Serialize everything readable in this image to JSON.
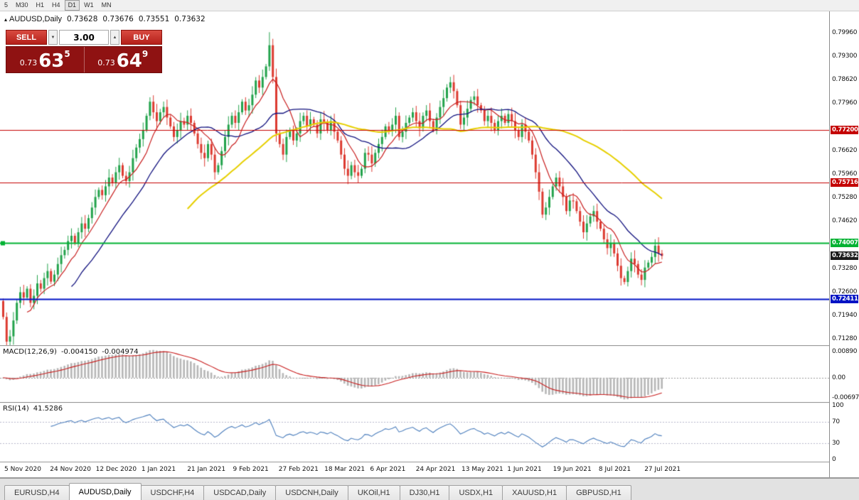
{
  "toolbar": {
    "timeframes": [
      "5",
      "M30",
      "H1",
      "H4",
      "D1",
      "W1",
      "MN"
    ],
    "active_timeframe": "D1"
  },
  "chart": {
    "header": {
      "marker": "▴",
      "title": "AUDUSD,Daily",
      "open": "0.73628",
      "high": "0.73676",
      "low": "0.73551",
      "close": "0.73632"
    },
    "trade_panel": {
      "sell_label": "SELL",
      "buy_label": "BUY",
      "volume_value": "3.00",
      "volume_down_arrow": "▼",
      "volume_up_arrow": "▲",
      "sell_price": {
        "base": "0.73",
        "big": "63",
        "sup": "5"
      },
      "buy_price": {
        "base": "0.73",
        "big": "64",
        "sup": "9"
      }
    },
    "hlines": [
      {
        "price": 0.772,
        "color": "#c40000",
        "width": 1
      },
      {
        "price": 0.75716,
        "color": "#c40000",
        "width": 1
      },
      {
        "price": 0.74007,
        "color": "#00b232",
        "width": 2,
        "handle": true
      },
      {
        "price": 0.72411,
        "color": "#0013c4",
        "width": 2
      }
    ],
    "price_axis_labels": [
      {
        "text": "0.79960",
        "price": 0.7996
      },
      {
        "text": "0.79300",
        "price": 0.793
      },
      {
        "text": "0.78620",
        "price": 0.7862
      },
      {
        "text": "0.77960",
        "price": 0.7796
      },
      {
        "text": "0.76620",
        "price": 0.7662
      },
      {
        "text": "0.75960",
        "price": 0.7596
      },
      {
        "text": "0.75280",
        "price": 0.7528
      },
      {
        "text": "0.74620",
        "price": 0.7462
      },
      {
        "text": "0.73280",
        "price": 0.7328
      },
      {
        "text": "0.72600",
        "price": 0.726
      },
      {
        "text": "0.71940",
        "price": 0.7194
      },
      {
        "text": "0.71280",
        "price": 0.7128
      }
    ],
    "price_axis_tags": [
      {
        "text": "0.77200",
        "price": 0.772,
        "color": "#c40000"
      },
      {
        "text": "0.75716",
        "price": 0.75716,
        "color": "#c40000"
      },
      {
        "text": "0.74007",
        "price": 0.74007,
        "color": "#00b232"
      },
      {
        "text": "0.73632",
        "price": 0.73632,
        "color": "#1c1c1c"
      },
      {
        "text": "0.72411",
        "price": 0.72411,
        "color": "#0013c4"
      }
    ]
  },
  "chart_data": {
    "type": "candlestick",
    "title": "AUDUSD,Daily",
    "symbol": "AUDUSD",
    "timeframe": "Daily",
    "ohlc_current": {
      "open": 0.73628,
      "high": 0.73676,
      "low": 0.73551,
      "close": 0.73632
    },
    "y_range": {
      "top": 0.8056,
      "bottom": 0.711
    },
    "up_color": "#22a24b",
    "down_color": "#dc3a30",
    "moving_averages": [
      {
        "period": 8,
        "color": "#c81e1e",
        "width": 1.2
      },
      {
        "period": 21,
        "color": "#11117e",
        "width": 1.3
      },
      {
        "period": 55,
        "color": "#e6cf00",
        "width": 2
      }
    ],
    "x_labels": [
      "5 Nov 2020",
      "24 Nov 2020",
      "12 Dec 2020",
      "1 Jan 2021",
      "21 Jan 2021",
      "9 Feb 2021",
      "27 Feb 2021",
      "18 Mar 2021",
      "6 Apr 2021",
      "24 Apr 2021",
      "13 May 2021",
      "1 Jun 2021",
      "19 Jun 2021",
      "8 Jul 2021",
      "27 Jul 2021"
    ],
    "closes": [
      0.719,
      0.712,
      0.7135,
      0.718,
      0.723,
      0.726,
      0.7245,
      0.727,
      0.723,
      0.725,
      0.7285,
      0.727,
      0.73,
      0.732,
      0.729,
      0.731,
      0.734,
      0.7365,
      0.738,
      0.7405,
      0.742,
      0.74,
      0.743,
      0.7455,
      0.744,
      0.747,
      0.75,
      0.753,
      0.755,
      0.7535,
      0.756,
      0.7585,
      0.757,
      0.76,
      0.762,
      0.759,
      0.7575,
      0.76,
      0.764,
      0.767,
      0.7694,
      0.772,
      0.776,
      0.78,
      0.777,
      0.7745,
      0.777,
      0.7785,
      0.7755,
      0.773,
      0.77,
      0.772,
      0.7745,
      0.7735,
      0.776,
      0.774,
      0.771,
      0.768,
      0.7655,
      0.764,
      0.768,
      0.765,
      0.76,
      0.762,
      0.766,
      0.77,
      0.7735,
      0.776,
      0.774,
      0.777,
      0.78,
      0.7775,
      0.779,
      0.782,
      0.786,
      0.784,
      0.787,
      0.79,
      0.796,
      0.787,
      0.771,
      0.768,
      0.765,
      0.77,
      0.772,
      0.769,
      0.771,
      0.7745,
      0.776,
      0.773,
      0.775,
      0.7735,
      0.771,
      0.775,
      0.774,
      0.772,
      0.7745,
      0.7715,
      0.769,
      0.765,
      0.761,
      0.759,
      0.762,
      0.76,
      0.759,
      0.761,
      0.7655,
      0.765,
      0.7625,
      0.7655,
      0.768,
      0.77,
      0.773,
      0.772,
      0.7735,
      0.776,
      0.77,
      0.7715,
      0.774,
      0.7755,
      0.777,
      0.7745,
      0.7725,
      0.776,
      0.7775,
      0.7745,
      0.772,
      0.7755,
      0.7785,
      0.781,
      0.784,
      0.7855,
      0.783,
      0.779,
      0.7735,
      0.7755,
      0.778,
      0.7805,
      0.7815,
      0.779,
      0.7775,
      0.7745,
      0.776,
      0.774,
      0.772,
      0.7745,
      0.776,
      0.774,
      0.7765,
      0.7745,
      0.772,
      0.77,
      0.7735,
      0.7715,
      0.769,
      0.765,
      0.76,
      0.7545,
      0.748,
      0.75,
      0.753,
      0.756,
      0.7585,
      0.756,
      0.753,
      0.749,
      0.752,
      0.7518,
      0.749,
      0.746,
      0.743,
      0.7455,
      0.7475,
      0.749,
      0.746,
      0.744,
      0.741,
      0.7385,
      0.74,
      0.737,
      0.7335,
      0.73,
      0.7289,
      0.732,
      0.7355,
      0.734,
      0.731,
      0.7295,
      0.733,
      0.7344,
      0.736,
      0.7392,
      0.737,
      0.7363
    ]
  },
  "indicators": {
    "macd": {
      "name": "MACD(12,26,9)",
      "value_main": "-0.004150",
      "value_signal": "-0.004974",
      "fast": 12,
      "slow": 26,
      "signal": 9,
      "axis_max": "0.00890",
      "axis_zero": "0.00",
      "axis_min": "-0.00697",
      "bar_color": "#b6b6b6",
      "signal_color": "#c81e1e"
    },
    "rsi": {
      "name": "RSI(14)",
      "value": "41.5286",
      "period": 14,
      "color": "#4d7fbd",
      "axis": [
        "100",
        "70",
        "30",
        "0"
      ],
      "levels": [
        70,
        30
      ]
    }
  },
  "date_axis": {
    "labels": [
      "5 Nov 2020",
      "24 Nov 2020",
      "12 Dec 2020",
      "1 Jan 2021",
      "21 Jan 2021",
      "9 Feb 2021",
      "27 Feb 2021",
      "18 Mar 2021",
      "6 Apr 2021",
      "24 Apr 2021",
      "13 May 2021",
      "1 Jun 2021",
      "19 Jun 2021",
      "8 Jul 2021",
      "27 Jul 2021"
    ]
  },
  "tabs": {
    "items": [
      {
        "label": "EURUSD,H4",
        "active": false
      },
      {
        "label": "AUDUSD,Daily",
        "active": true
      },
      {
        "label": "USDCHF,H4",
        "active": false
      },
      {
        "label": "USDCAD,Daily",
        "active": false
      },
      {
        "label": "USDCNH,Daily",
        "active": false
      },
      {
        "label": "UKOil,H1",
        "active": false
      },
      {
        "label": "DJ30,H1",
        "active": false
      },
      {
        "label": "USDX,H1",
        "active": false
      },
      {
        "label": "XAUUSD,H1",
        "active": false
      },
      {
        "label": "GBPUSD,H1",
        "active": false
      }
    ]
  }
}
